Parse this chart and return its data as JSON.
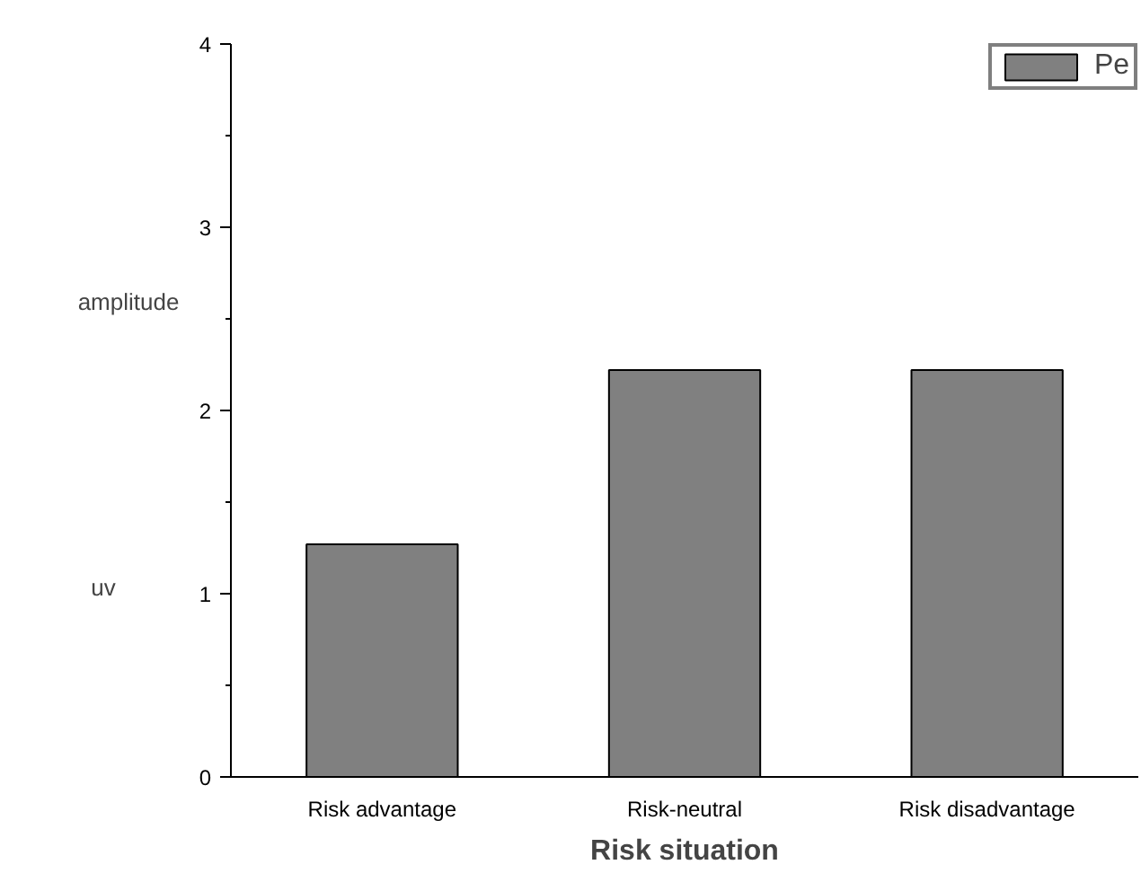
{
  "chart_data": {
    "type": "bar",
    "xlabel": "Risk situation",
    "ylabel": "amplitude uv",
    "categories": [
      "Risk advantage",
      "Risk-neutral",
      "Risk disadvantage"
    ],
    "series": [
      {
        "name": "Pe",
        "color": "#808080",
        "values": [
          1.27,
          2.22,
          2.22
        ]
      }
    ],
    "ylim": [
      0,
      4
    ],
    "yticks": [
      0,
      1,
      2,
      3,
      4
    ],
    "grid": false,
    "legend": "top right"
  }
}
